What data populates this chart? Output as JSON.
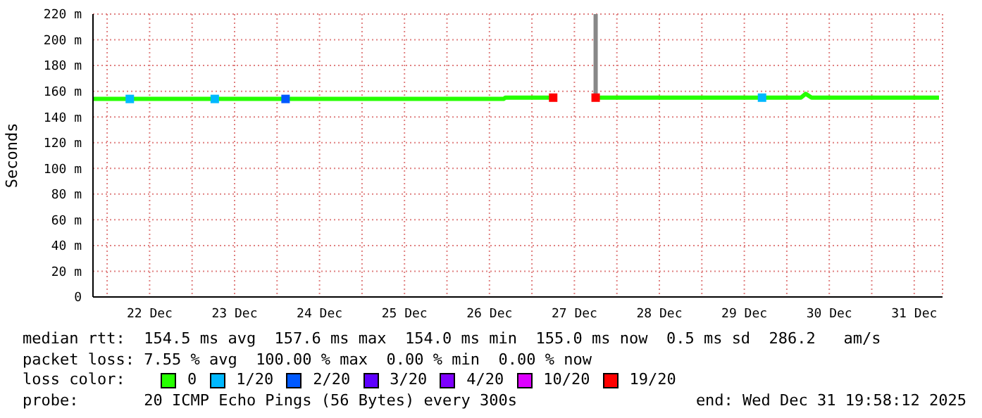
{
  "chart_data": {
    "type": "line",
    "ylabel": "Seconds",
    "legend_title": "loss color:",
    "legend": "bottom",
    "grid": true,
    "xlim": [
      "2025-12-21T20:00",
      "2025-12-31T20:00"
    ],
    "xticks": [
      {
        "value": "2025-12-22T00:00",
        "label": null
      },
      {
        "value": "2025-12-22T12:00",
        "label": "22 Dec"
      },
      {
        "value": "2025-12-23T00:00",
        "label": null
      },
      {
        "value": "2025-12-23T12:00",
        "label": "23 Dec"
      },
      {
        "value": "2025-12-24T00:00",
        "label": null
      },
      {
        "value": "2025-12-24T12:00",
        "label": "24 Dec"
      },
      {
        "value": "2025-12-25T00:00",
        "label": null
      },
      {
        "value": "2025-12-25T12:00",
        "label": "25 Dec"
      },
      {
        "value": "2025-12-26T00:00",
        "label": null
      },
      {
        "value": "2025-12-26T12:00",
        "label": "26 Dec"
      },
      {
        "value": "2025-12-27T00:00",
        "label": null
      },
      {
        "value": "2025-12-27T12:00",
        "label": "27 Dec"
      },
      {
        "value": "2025-12-28T00:00",
        "label": null
      },
      {
        "value": "2025-12-28T12:00",
        "label": "28 Dec"
      },
      {
        "value": "2025-12-29T00:00",
        "label": null
      },
      {
        "value": "2025-12-29T12:00",
        "label": "29 Dec"
      },
      {
        "value": "2025-12-30T00:00",
        "label": null
      },
      {
        "value": "2025-12-30T12:00",
        "label": "30 Dec"
      },
      {
        "value": "2025-12-31T00:00",
        "label": null
      },
      {
        "value": "2025-12-31T12:00",
        "label": "31 Dec"
      }
    ],
    "ylim": [
      0,
      220
    ],
    "yticks": [
      0,
      {
        "value": 20,
        "label": "20 m"
      },
      {
        "value": 40,
        "label": "40 m"
      },
      {
        "value": 60,
        "label": "60 m"
      },
      {
        "value": 80,
        "label": "80 m"
      },
      {
        "value": 100,
        "label": "100 m"
      },
      {
        "value": 120,
        "label": "120 m"
      },
      {
        "value": 140,
        "label": "140 m"
      },
      {
        "value": 160,
        "label": "160 m"
      },
      {
        "value": 180,
        "label": "180 m"
      },
      {
        "value": 200,
        "label": "200 m"
      },
      {
        "value": 220,
        "label": "220 m"
      }
    ],
    "series": [
      {
        "name": "0",
        "color": "#26ff00",
        "x": [
          "2025-12-21T20:00",
          "2025-12-22T12:00",
          "2025-12-23T12:00",
          "2025-12-24T12:00",
          "2025-12-25T12:00",
          "2025-12-26T12:00",
          "2025-12-26T16:00",
          "2025-12-26T16:30",
          "2025-12-27T06:00",
          "2025-12-27T12:00",
          "2025-12-27T18:00",
          "2025-12-28T12:00",
          "2025-12-29T12:00",
          "2025-12-30T04:00",
          "2025-12-30T05:20",
          "2025-12-30T07:00",
          "2025-12-30T12:00",
          "2025-12-31T19:00"
        ],
        "values": [
          154,
          154,
          154,
          154,
          154,
          154,
          154,
          155,
          155,
          null,
          155,
          155,
          155,
          155,
          158,
          155,
          155,
          155
        ]
      },
      {
        "name": "1/20",
        "color": "#00b8ff",
        "type": "scatter",
        "marker": "square",
        "x": [
          "2025-12-22T06:24",
          "2025-12-23T06:24",
          "2025-12-29T17:00"
        ],
        "values": [
          154,
          154,
          155
        ]
      },
      {
        "name": "2/20",
        "color": "#0059ff",
        "type": "scatter",
        "marker": "square",
        "x": [
          "2025-12-24T02:24"
        ],
        "values": [
          154
        ]
      },
      {
        "name": "3/20",
        "color": "#5e00ff",
        "type": "scatter",
        "marker": "square"
      },
      {
        "name": "4/20",
        "color": "#7e00ff",
        "type": "scatter",
        "marker": "square"
      },
      {
        "name": "10/20",
        "color": "#dd00ff",
        "type": "scatter",
        "marker": "square"
      },
      {
        "name": "19/20",
        "color": "#ff0000",
        "type": "scatter",
        "marker": "square",
        "x": [
          "2025-12-27T06:00",
          "2025-12-27T18:00"
        ],
        "values": [
          155,
          155
        ]
      },
      {
        "color": "#888888",
        "x": [
          "2025-12-27T18:00",
          "2025-12-27T18:00"
        ],
        "values": [
          155,
          220
        ]
      }
    ],
    "annotations": [
      "median rtt:  154.5 ms avg  157.6 ms max  154.0 ms min  155.0 ms now  0.5 ms sd  286.2   am/s",
      "packet loss: 7.55 % avg  100.00 % max  0.00 % min  0.00 % now",
      "probe:       20 ICMP Echo Pings (56 Bytes) every 300s",
      "end: Wed Dec 31 19:58:12 2025"
    ]
  }
}
